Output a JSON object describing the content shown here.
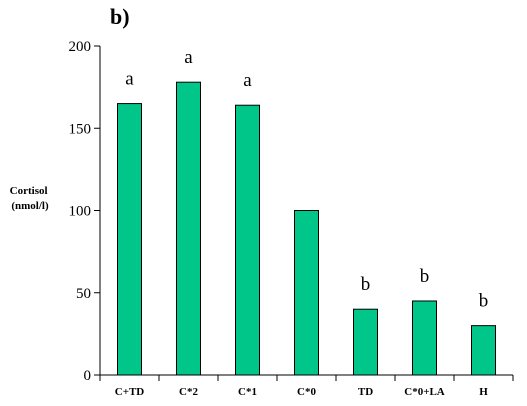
{
  "chart_data": {
    "type": "bar",
    "panel_label": "b)",
    "ylabel_lines": [
      "Cortisol",
      "(nmol/l)"
    ],
    "xlabel": "",
    "categories": [
      "C+TD",
      "C*2",
      "C*1",
      "C*0",
      "TD",
      "C*0+LA",
      "H"
    ],
    "values": [
      165,
      178,
      164,
      100,
      40,
      45,
      30
    ],
    "significance": [
      "a",
      "a",
      "a",
      "",
      "b",
      "b",
      "b"
    ],
    "ylim": [
      0,
      200
    ],
    "yticks": [
      0,
      50,
      100,
      150,
      200
    ],
    "grid": false,
    "legend": "none",
    "bar_color": "#00C68A",
    "bar_edge_color": "#000000"
  }
}
